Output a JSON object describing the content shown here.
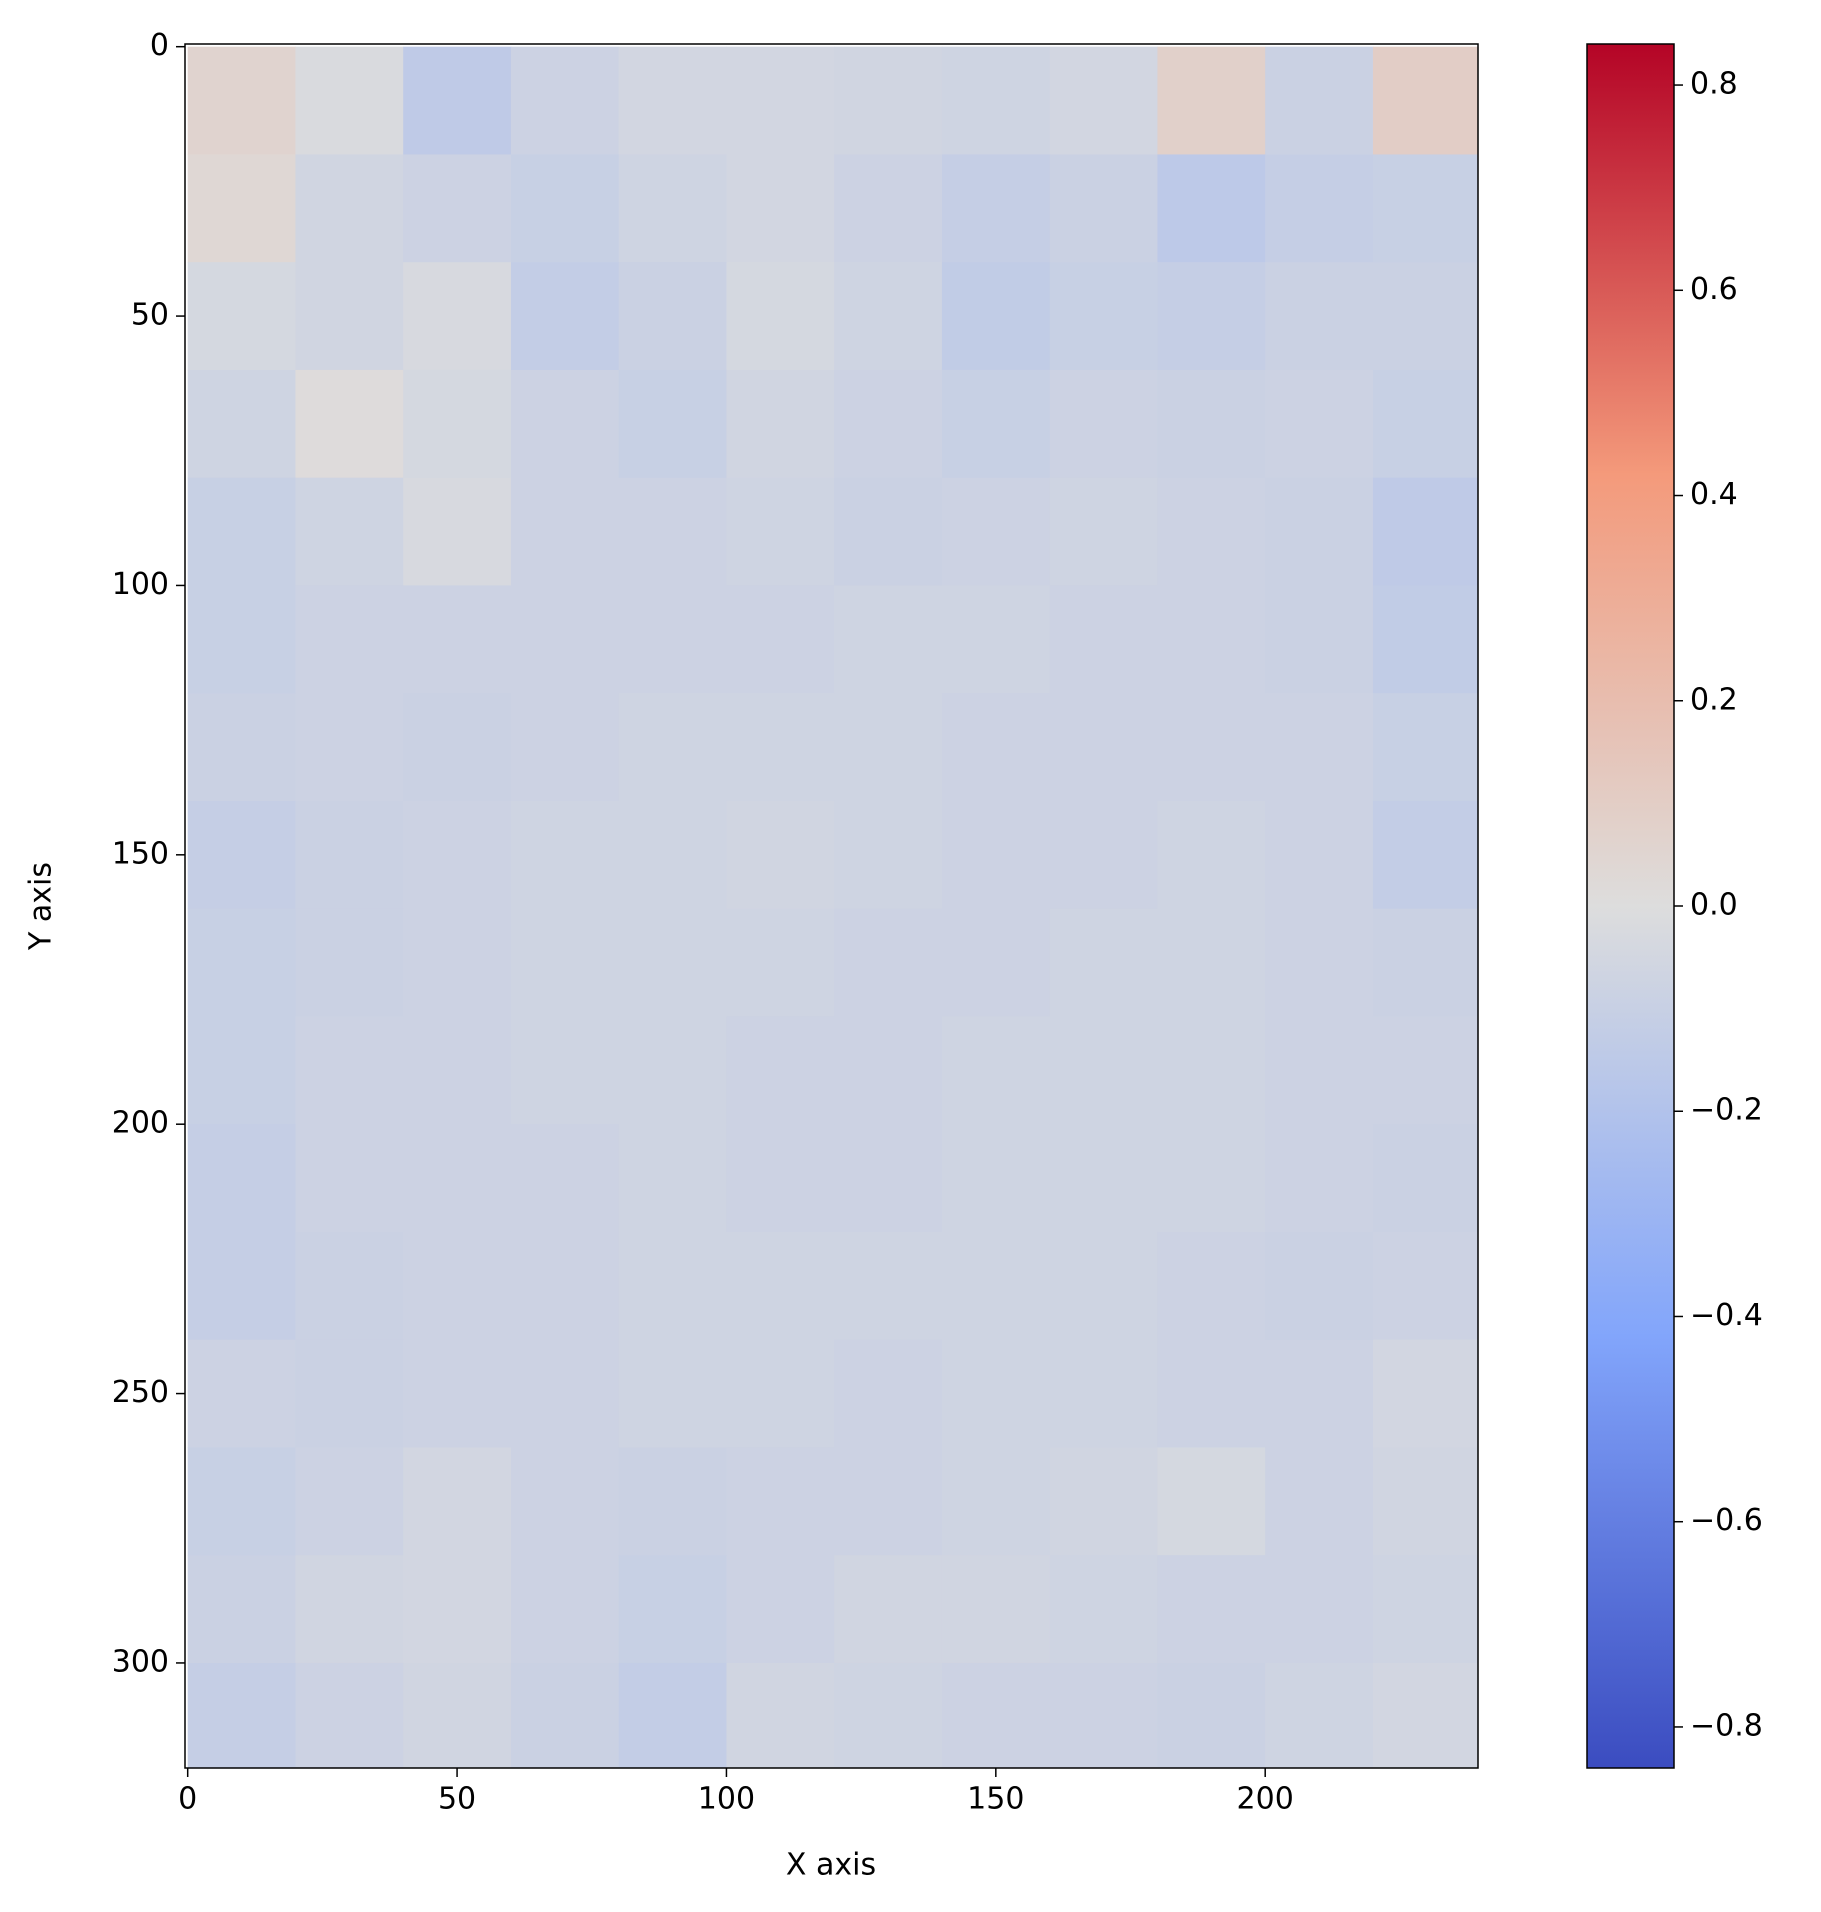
{
  "chart_data": {
    "type": "heatmap",
    "xlabel": "X axis",
    "ylabel": "Y axis",
    "colormap": "coolwarm",
    "x": [
      10,
      30,
      50,
      70,
      90,
      110,
      130,
      150,
      170,
      190,
      210,
      230
    ],
    "y": [
      10,
      30,
      50,
      70,
      90,
      110,
      130,
      150,
      170,
      190,
      210,
      230,
      250,
      270,
      290,
      310
    ],
    "z": [
      [
        0.06,
        -0.02,
        -0.14,
        -0.08,
        -0.05,
        -0.05,
        -0.06,
        -0.07,
        -0.05,
        0.08,
        -0.09,
        0.1
      ],
      [
        0.04,
        -0.06,
        -0.08,
        -0.1,
        -0.07,
        -0.05,
        -0.08,
        -0.11,
        -0.09,
        -0.15,
        -0.11,
        -0.1
      ],
      [
        -0.04,
        -0.06,
        -0.03,
        -0.12,
        -0.09,
        -0.04,
        -0.07,
        -0.13,
        -0.1,
        -0.11,
        -0.09,
        -0.09
      ],
      [
        -0.07,
        0.01,
        -0.04,
        -0.08,
        -0.1,
        -0.06,
        -0.08,
        -0.1,
        -0.08,
        -0.09,
        -0.08,
        -0.1
      ],
      [
        -0.1,
        -0.07,
        -0.03,
        -0.08,
        -0.08,
        -0.07,
        -0.09,
        -0.08,
        -0.07,
        -0.08,
        -0.09,
        -0.14
      ],
      [
        -0.1,
        -0.08,
        -0.08,
        -0.08,
        -0.08,
        -0.08,
        -0.07,
        -0.07,
        -0.08,
        -0.08,
        -0.09,
        -0.13
      ],
      [
        -0.09,
        -0.08,
        -0.09,
        -0.08,
        -0.07,
        -0.07,
        -0.07,
        -0.08,
        -0.08,
        -0.08,
        -0.08,
        -0.1
      ],
      [
        -0.11,
        -0.09,
        -0.08,
        -0.07,
        -0.07,
        -0.06,
        -0.07,
        -0.08,
        -0.08,
        -0.07,
        -0.08,
        -0.12
      ],
      [
        -0.1,
        -0.09,
        -0.08,
        -0.07,
        -0.07,
        -0.07,
        -0.08,
        -0.08,
        -0.07,
        -0.07,
        -0.08,
        -0.09
      ],
      [
        -0.1,
        -0.08,
        -0.08,
        -0.07,
        -0.07,
        -0.08,
        -0.08,
        -0.07,
        -0.07,
        -0.07,
        -0.08,
        -0.08
      ],
      [
        -0.11,
        -0.08,
        -0.08,
        -0.08,
        -0.07,
        -0.08,
        -0.08,
        -0.07,
        -0.07,
        -0.07,
        -0.08,
        -0.09
      ],
      [
        -0.11,
        -0.09,
        -0.08,
        -0.08,
        -0.07,
        -0.07,
        -0.07,
        -0.07,
        -0.07,
        -0.08,
        -0.09,
        -0.08
      ],
      [
        -0.08,
        -0.09,
        -0.08,
        -0.08,
        -0.07,
        -0.07,
        -0.08,
        -0.07,
        -0.07,
        -0.08,
        -0.08,
        -0.05
      ],
      [
        -0.1,
        -0.08,
        -0.05,
        -0.08,
        -0.09,
        -0.08,
        -0.08,
        -0.07,
        -0.06,
        -0.04,
        -0.08,
        -0.06
      ],
      [
        -0.09,
        -0.06,
        -0.05,
        -0.08,
        -0.1,
        -0.08,
        -0.06,
        -0.06,
        -0.07,
        -0.08,
        -0.08,
        -0.07
      ],
      [
        -0.11,
        -0.08,
        -0.06,
        -0.09,
        -0.12,
        -0.06,
        -0.07,
        -0.08,
        -0.08,
        -0.09,
        -0.07,
        -0.05
      ]
    ],
    "xlim": [
      -0.5,
      239.5
    ],
    "ylim": [
      319.5,
      -0.5
    ],
    "xticks": [
      0,
      50,
      100,
      150,
      200
    ],
    "yticks": [
      0,
      50,
      100,
      150,
      200,
      250,
      300
    ],
    "clim": [
      -0.84,
      0.84
    ],
    "cticks": [
      {
        "value": -0.8,
        "label": "−0.8"
      },
      {
        "value": -0.6,
        "label": "−0.6"
      },
      {
        "value": -0.4,
        "label": "−0.4"
      },
      {
        "value": -0.2,
        "label": "−0.2"
      },
      {
        "value": 0,
        "label": "0.0"
      },
      0.2,
      0.4,
      0.6,
      0.8
    ]
  }
}
